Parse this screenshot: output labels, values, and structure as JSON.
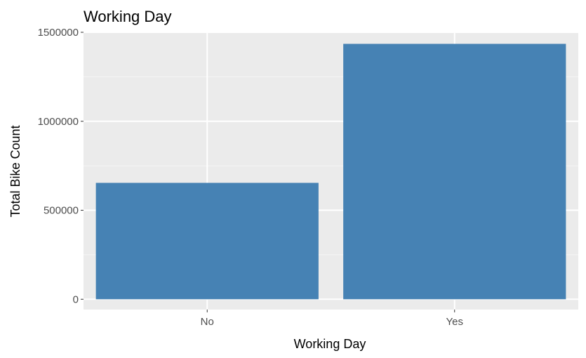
{
  "colors": {
    "panel_background": "#EBEBEB",
    "grid_major": "#FFFFFF",
    "grid_minor": "#F5F5F5",
    "bar_fill": "#4682B4",
    "tick_text": "#4D4D4D",
    "axis_tick": "#333333"
  },
  "chart_data": {
    "type": "bar",
    "title": "Working Day",
    "xlabel": "Working Day",
    "ylabel": "Total Bike Count",
    "categories": [
      "No",
      "Yes"
    ],
    "values": [
      654000,
      1435000
    ],
    "ylim": [
      -58000,
      1500000
    ],
    "yticks": [
      0,
      500000,
      1000000,
      1500000
    ],
    "ytick_labels": [
      "0",
      "500000",
      "1000000",
      "1500000"
    ],
    "grid": true,
    "legend": "none"
  }
}
